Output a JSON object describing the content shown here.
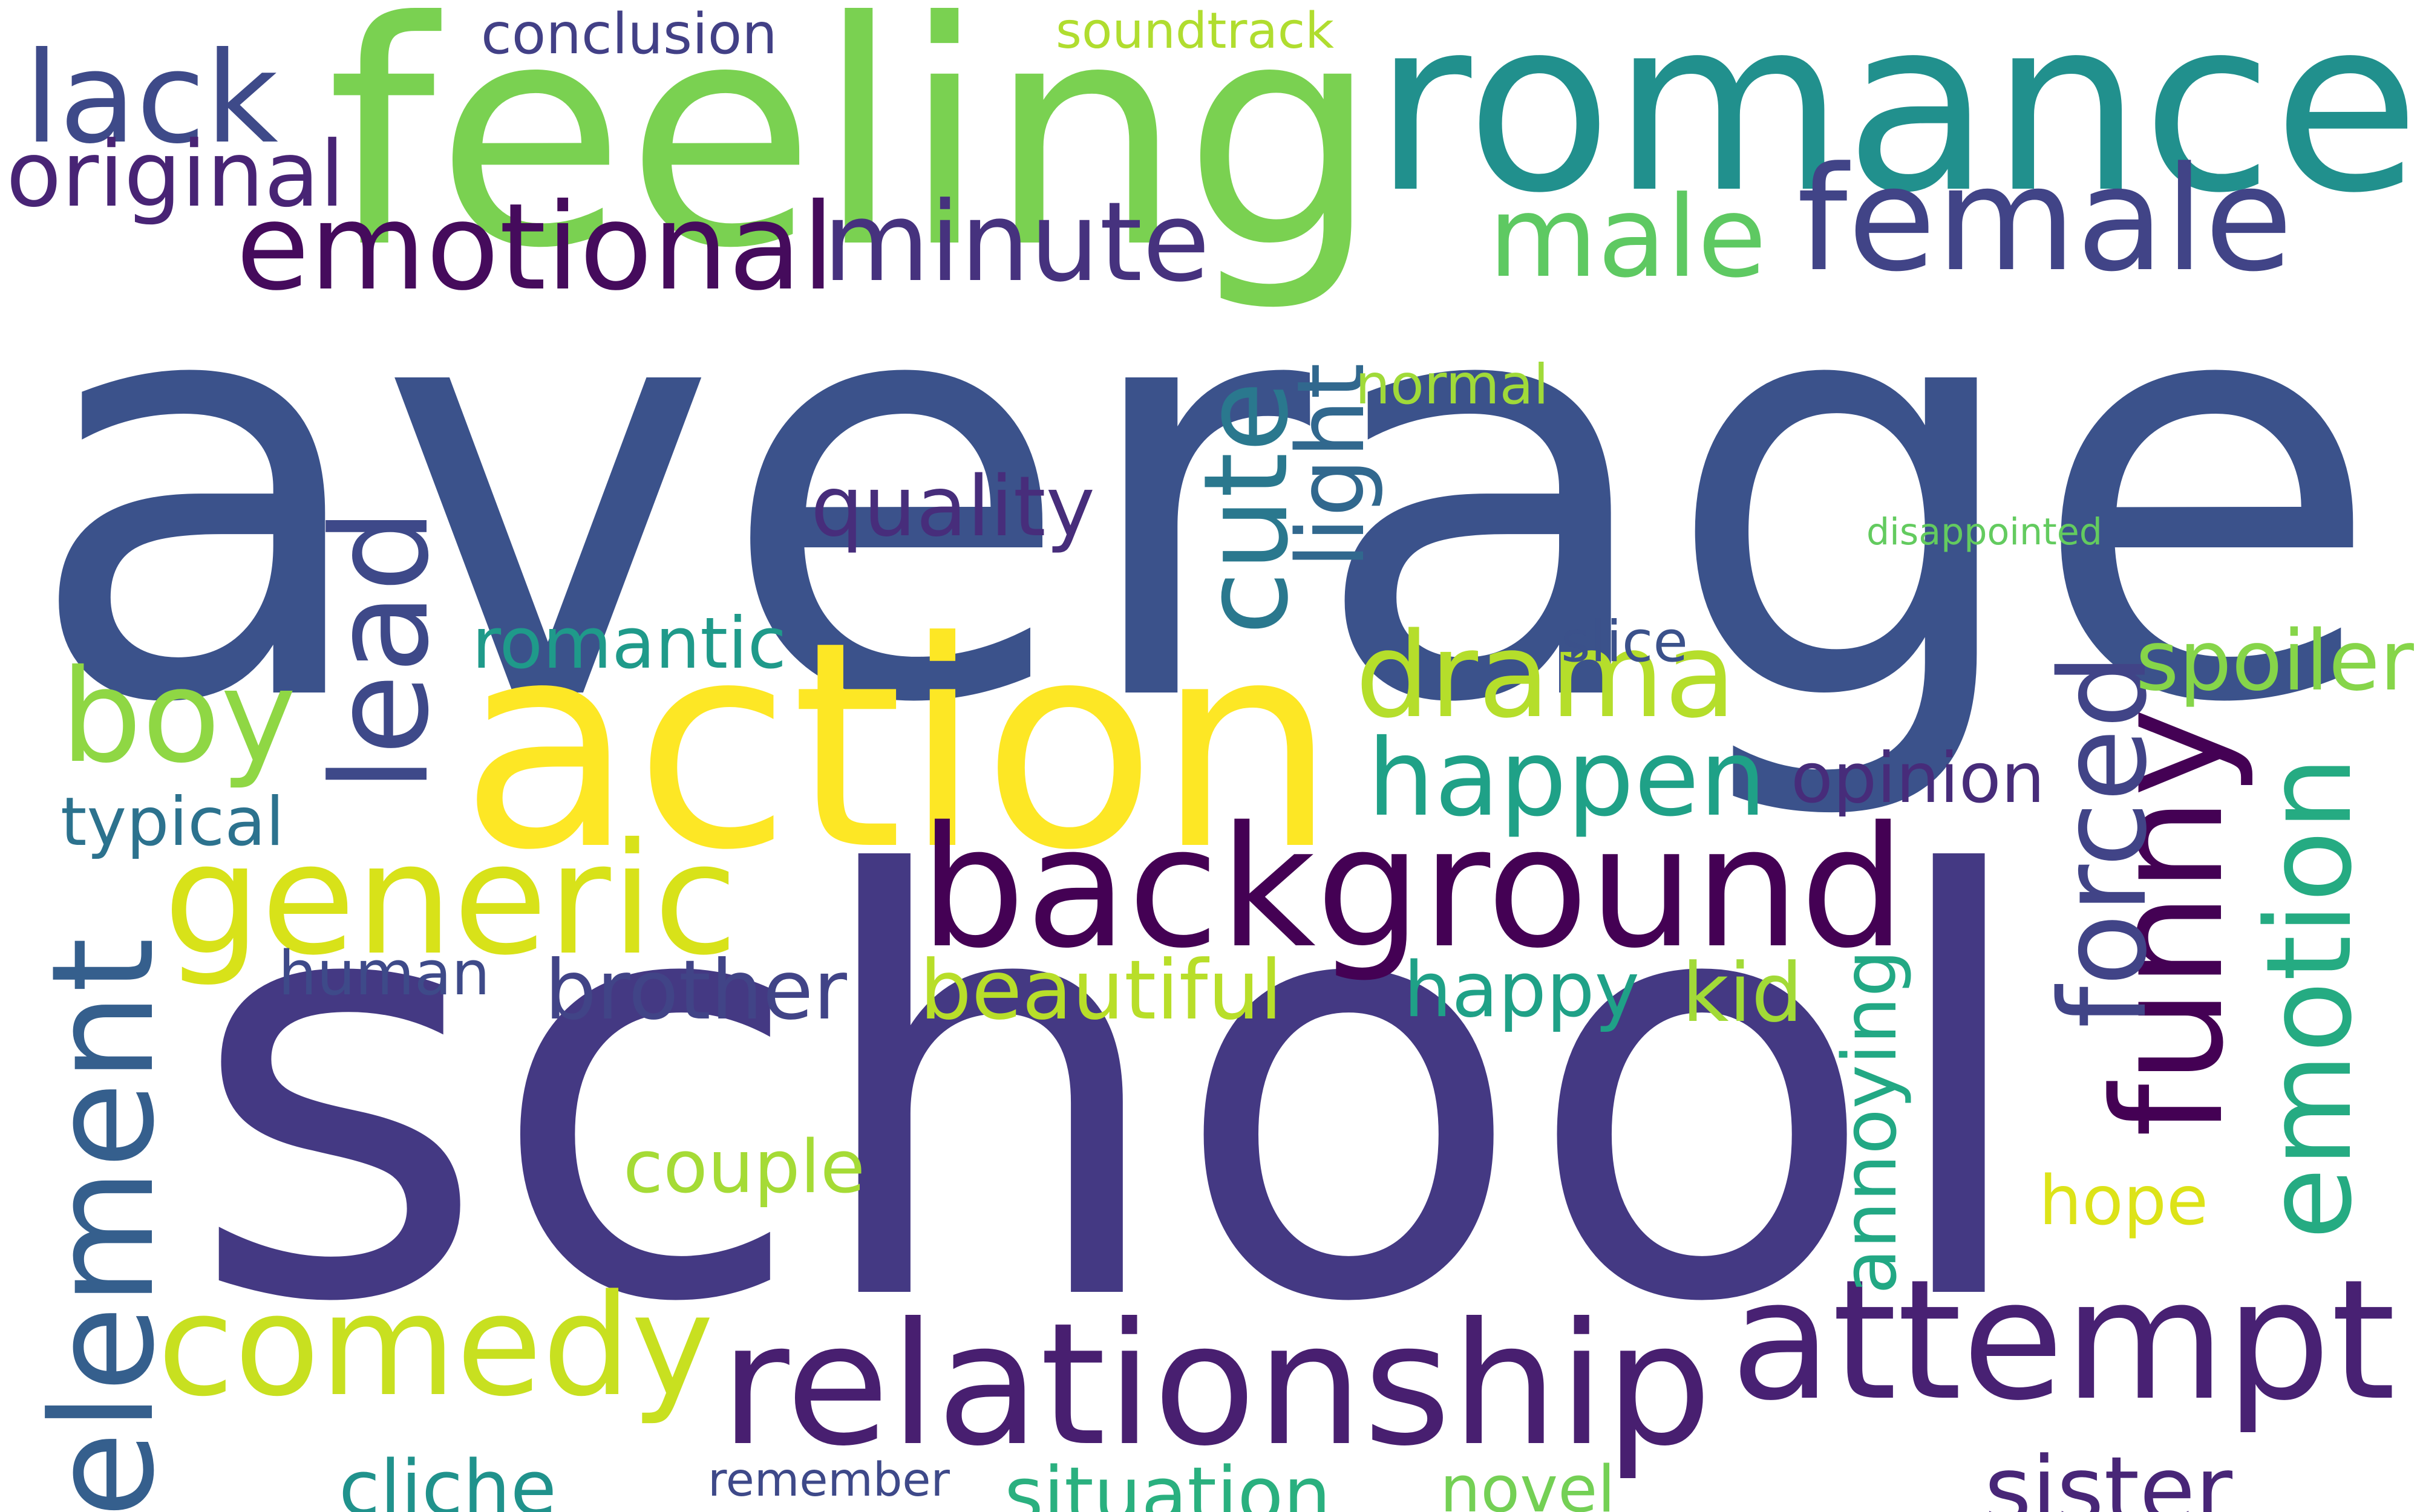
{
  "words": [
    {
      "text": "average",
      "color": "#3b528b"
    },
    {
      "text": "school",
      "color": "#443983"
    },
    {
      "text": "feeling",
      "color": "#7ad151"
    },
    {
      "text": "romance",
      "color": "#21908d"
    },
    {
      "text": "action",
      "color": "#fde725"
    },
    {
      "text": "background",
      "color": "#440154"
    },
    {
      "text": "relationship",
      "color": "#481f70"
    },
    {
      "text": "attempt",
      "color": "#482173"
    },
    {
      "text": "comedy",
      "color": "#c8e020"
    },
    {
      "text": "female",
      "color": "#414487"
    },
    {
      "text": "emotional",
      "color": "#450b5c"
    },
    {
      "text": "minute",
      "color": "#46327e"
    },
    {
      "text": "generic",
      "color": "#d8e219"
    },
    {
      "text": "element",
      "color": "#355f8d"
    },
    {
      "text": "funny",
      "color": "#440154"
    },
    {
      "text": "emotion",
      "color": "#25ab82"
    },
    {
      "text": "drama",
      "color": "#b5de2b"
    },
    {
      "text": "happen",
      "color": "#1fa187"
    },
    {
      "text": "boy",
      "color": "#8fd744"
    },
    {
      "text": "lead",
      "color": "#3e4989"
    },
    {
      "text": "male",
      "color": "#5ec962"
    },
    {
      "text": "lack",
      "color": "#3e4a89"
    },
    {
      "text": "cute",
      "color": "#2a788e"
    },
    {
      "text": "forced",
      "color": "#414487"
    },
    {
      "text": "original",
      "color": "#482475"
    },
    {
      "text": "quality",
      "color": "#472d7b"
    },
    {
      "text": "light",
      "color": "#31688e"
    },
    {
      "text": "normal",
      "color": "#a0da39"
    },
    {
      "text": "romantic",
      "color": "#1f9a8a"
    },
    {
      "text": "spoiler",
      "color": "#86d549"
    },
    {
      "text": "opinion",
      "color": "#472c7a"
    },
    {
      "text": "brother",
      "color": "#414487"
    },
    {
      "text": "human",
      "color": "#3e4a89"
    },
    {
      "text": "beautiful",
      "color": "#b8de29"
    },
    {
      "text": "happy",
      "color": "#1fa187"
    },
    {
      "text": "kid",
      "color": "#a2da37"
    },
    {
      "text": "annoying",
      "color": "#22a884"
    },
    {
      "text": "couple",
      "color": "#a5db36"
    },
    {
      "text": "hope",
      "color": "#dde318"
    },
    {
      "text": "typical",
      "color": "#2c728e"
    },
    {
      "text": "conclusion",
      "color": "#424086"
    },
    {
      "text": "soundtrack",
      "color": "#b0dd2f"
    },
    {
      "text": "disappointed",
      "color": "#63cb5f"
    },
    {
      "text": "slice",
      "color": "#3b518b"
    },
    {
      "text": "cliche",
      "color": "#20928c"
    },
    {
      "text": "remember",
      "color": "#3e4989"
    },
    {
      "text": "situation",
      "color": "#2ab07f"
    },
    {
      "text": "novel",
      "color": "#74d055"
    },
    {
      "text": "sister",
      "color": "#482677"
    }
  ]
}
